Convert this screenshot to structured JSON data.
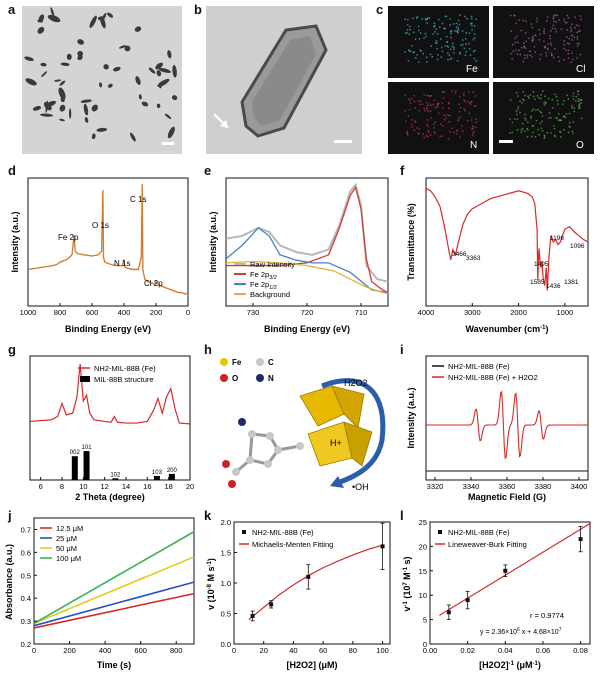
{
  "figure": {
    "panel_labels": [
      "a",
      "b",
      "c",
      "d",
      "e",
      "f",
      "g",
      "h",
      "i",
      "j",
      "k",
      "l"
    ],
    "colors": {
      "panel_d_line": "#d2782b",
      "e_raw": "#b8b8b8",
      "e_fe32": "#d43a3a",
      "e_fe12": "#4a82c8",
      "e_bg": "#e2b23a",
      "f_line": "#d62a2a",
      "g_line": "#d62a2a",
      "g_bars": "#000000",
      "i_black": "#111111",
      "i_red": "#d62a2a",
      "j_c1": "#d62a2a",
      "j_c2": "#2a4ec8",
      "j_c3": "#e6c81e",
      "j_c4": "#35b25a",
      "kl_line": "#d62a2a",
      "tem_bg": "#d9d9d9",
      "eds_bg": "#111111",
      "eds_fe": "#43b6d6",
      "eds_cl": "#b25ab8",
      "eds_n": "#c8325a",
      "eds_o": "#52b84a",
      "h_fe": "#e6c800",
      "h_c": "#c8c8c8",
      "h_o": "#cc2222",
      "h_n": "#1e2a6e",
      "h_polyhedra": "#e6b800",
      "h_arrow": "#2a5ea8"
    }
  },
  "panel_c": {
    "labels": [
      "Fe",
      "Cl",
      "N",
      "O"
    ]
  },
  "panel_d": {
    "chart_data": {
      "type": "line",
      "title": "",
      "xlabel": "Binding Energy (eV)",
      "ylabel": "Intensity (a.u.)",
      "xlim": [
        1000,
        0
      ],
      "x_ticks": [
        "1000",
        "800",
        "600",
        "400",
        "200",
        "0"
      ],
      "x": [
        1000,
        950,
        900,
        850,
        820,
        800,
        780,
        760,
        740,
        725,
        712,
        705,
        690,
        650,
        600,
        560,
        540,
        532,
        528,
        520,
        480,
        440,
        410,
        402,
        395,
        380,
        340,
        310,
        292,
        286,
        282,
        270,
        250,
        230,
        210,
        200,
        180,
        160,
        140,
        120,
        100,
        80,
        60,
        40,
        20,
        0
      ],
      "y": [
        0.3,
        0.31,
        0.32,
        0.33,
        0.34,
        0.36,
        0.37,
        0.38,
        0.4,
        0.42,
        0.58,
        0.45,
        0.43,
        0.42,
        0.41,
        0.42,
        0.45,
        0.95,
        0.4,
        0.36,
        0.34,
        0.33,
        0.33,
        0.38,
        0.32,
        0.31,
        0.3,
        0.3,
        0.4,
        1.0,
        0.3,
        0.22,
        0.2,
        0.19,
        0.18,
        0.2,
        0.17,
        0.16,
        0.15,
        0.14,
        0.13,
        0.12,
        0.11,
        0.11,
        0.1,
        0.1
      ],
      "annotations": [
        "Fe 2p",
        "O 1s",
        "N 1s",
        "C 1s",
        "Cl 2p"
      ]
    }
  },
  "panel_e": {
    "chart_data": {
      "type": "line",
      "xlabel": "Binding Energy (eV)",
      "ylabel": "Intensity (a.u.)",
      "xlim": [
        735,
        705
      ],
      "x_ticks": [
        "730",
        "720",
        "710"
      ],
      "series": [
        {
          "name": "Raw Intensity",
          "x": [
            735,
            732,
            729,
            727,
            725,
            722,
            719,
            716,
            714,
            712,
            711,
            710,
            709,
            707,
            705
          ],
          "values": [
            0.6,
            0.62,
            0.68,
            0.65,
            0.55,
            0.5,
            0.48,
            0.52,
            0.7,
            0.95,
            1.0,
            0.85,
            0.4,
            0.3,
            0.28
          ]
        },
        {
          "name": "Fe 2p3/2",
          "x": [
            735,
            730,
            725,
            720,
            716,
            714,
            712,
            711,
            710,
            709,
            708,
            706,
            705
          ],
          "values": [
            0.4,
            0.4,
            0.4,
            0.42,
            0.48,
            0.68,
            0.92,
            0.98,
            0.82,
            0.45,
            0.28,
            0.22,
            0.2
          ]
        },
        {
          "name": "Fe 2p1/2",
          "x": [
            735,
            732,
            729,
            727,
            725,
            722,
            719,
            716,
            712,
            708,
            705
          ],
          "values": [
            0.45,
            0.55,
            0.68,
            0.62,
            0.48,
            0.44,
            0.42,
            0.42,
            0.35,
            0.22,
            0.2
          ]
        },
        {
          "name": "Background",
          "x": [
            735,
            730,
            725,
            720,
            715,
            712,
            709,
            706,
            705
          ],
          "values": [
            0.42,
            0.43,
            0.42,
            0.4,
            0.36,
            0.3,
            0.24,
            0.2,
            0.19
          ]
        }
      ],
      "legend": [
        "Raw Intensity",
        "Fe 2p",
        "Fe 2p",
        "Background"
      ],
      "legend_sub": [
        "",
        "3/2",
        "1/2",
        ""
      ]
    }
  },
  "panel_f": {
    "chart_data": {
      "type": "line",
      "xlabel": "Wavenumber (cm",
      "xlabel_sup": "-1",
      "xlabel_end": ")",
      "ylabel": "Transmittance (%)",
      "xlim": [
        4000,
        500
      ],
      "x_ticks": [
        "4000",
        "3000",
        "2000",
        "1000"
      ],
      "x": [
        4000,
        3900,
        3800,
        3700,
        3600,
        3500,
        3466,
        3420,
        3363,
        3300,
        3200,
        3100,
        3000,
        2800,
        2600,
        2400,
        2200,
        2000,
        1900,
        1800,
        1700,
        1650,
        1600,
        1585,
        1560,
        1520,
        1495,
        1470,
        1436,
        1400,
        1381,
        1340,
        1300,
        1250,
        1196,
        1150,
        1096,
        1050,
        1000,
        900,
        800,
        700,
        600,
        500
      ],
      "y": [
        0.92,
        0.9,
        0.85,
        0.78,
        0.62,
        0.42,
        0.36,
        0.44,
        0.4,
        0.5,
        0.64,
        0.72,
        0.76,
        0.8,
        0.84,
        0.86,
        0.88,
        0.9,
        0.89,
        0.88,
        0.85,
        0.8,
        0.6,
        0.2,
        0.45,
        0.3,
        0.35,
        0.22,
        0.16,
        0.3,
        0.12,
        0.4,
        0.55,
        0.5,
        0.52,
        0.48,
        0.5,
        0.55,
        0.6,
        0.62,
        0.58,
        0.55,
        0.52,
        0.5
      ],
      "annotations": [
        "3466",
        "3363",
        "1585",
        "1495",
        "1436",
        "1381",
        "1196",
        "1096"
      ]
    }
  },
  "panel_g": {
    "chart_data": {
      "type": "line",
      "xlabel": "2 Theta (degree)",
      "ylabel": "",
      "xlim": [
        5,
        20
      ],
      "x_ticks": [
        "6",
        "8",
        "10",
        "12",
        "14",
        "16",
        "18",
        "20"
      ],
      "series": [
        {
          "name": "NH2-MIL-88B (Fe)",
          "x": [
            5,
            6,
            7,
            7.6,
            8.0,
            8.4,
            9,
            9.4,
            9.7,
            10.0,
            10.3,
            10.6,
            11,
            12,
            12.6,
            12.9,
            13.2,
            14,
            15,
            16,
            16.6,
            17.0,
            17.4,
            17.8,
            18.2,
            18.6,
            19,
            20
          ],
          "values": [
            0.3,
            0.31,
            0.32,
            0.36,
            0.52,
            0.38,
            0.4,
            0.6,
            1.0,
            0.55,
            0.62,
            0.4,
            0.32,
            0.3,
            0.29,
            0.36,
            0.29,
            0.28,
            0.28,
            0.3,
            0.44,
            0.58,
            0.4,
            0.6,
            0.7,
            0.45,
            0.28,
            0.27
          ]
        }
      ],
      "bars": [
        {
          "label": "002",
          "x": 9.2,
          "value": 0.7
        },
        {
          "label": "101",
          "x": 10.3,
          "value": 0.85
        },
        {
          "label": "102",
          "x": 13.0,
          "value": 0.05
        },
        {
          "label": "103",
          "x": 16.9,
          "value": 0.12
        },
        {
          "label": "200",
          "x": 18.3,
          "value": 0.18
        }
      ],
      "legend": [
        "NH2-MIL-88B (Fe)",
        "MIL-88B structure"
      ]
    }
  },
  "panel_h": {
    "legend_atoms": [
      {
        "sym": "Fe"
      },
      {
        "sym": "C"
      },
      {
        "sym": "O"
      },
      {
        "sym": "N"
      }
    ],
    "labels": {
      "h2o2": "H2O2",
      "h_plus": "H+",
      "oh": "•OH"
    }
  },
  "panel_i": {
    "chart_data": {
      "type": "line",
      "xlabel": "Magnetic Field (G)",
      "ylabel": "Intensity (a.u.)",
      "xlim": [
        3315,
        3405
      ],
      "x_ticks": [
        "3320",
        "3340",
        "3360",
        "3380",
        "3400"
      ],
      "line_peaks_G": [
        3344,
        3358,
        3366,
        3379
      ],
      "line_amplitudes": [
        0.45,
        0.95,
        0.9,
        0.4
      ],
      "series_names": [
        "NH2-MIL-88B (Fe)",
        "NH2-MIL-88B (Fe) + H2O2"
      ]
    }
  },
  "panel_j": {
    "chart_data": {
      "type": "line",
      "xlabel": "Time (s)",
      "ylabel": "Absorbance (a.u.)",
      "xlim": [
        0,
        900
      ],
      "ylim": [
        0.2,
        0.75
      ],
      "x_ticks": [
        "0",
        "200",
        "400",
        "600",
        "800"
      ],
      "y_ticks": [
        "0.2",
        "0.3",
        "0.4",
        "0.5",
        "0.6",
        "0.7"
      ],
      "series": [
        {
          "name": "12.5 μM",
          "x": [
            0,
            900
          ],
          "values": [
            0.27,
            0.42
          ]
        },
        {
          "name": "25 μM",
          "x": [
            0,
            900
          ],
          "values": [
            0.28,
            0.47
          ]
        },
        {
          "name": "50 μM",
          "x": [
            0,
            900
          ],
          "values": [
            0.29,
            0.58
          ]
        },
        {
          "name": "100 μM",
          "x": [
            0,
            900
          ],
          "values": [
            0.29,
            0.69
          ]
        }
      ]
    }
  },
  "panel_k": {
    "chart_data": {
      "type": "scatter",
      "xlabel": "[H2O2] (μM)",
      "ylabel": "v (10",
      "xlim": [
        0,
        105
      ],
      "ylim": [
        0,
        2.0
      ],
      "x_ticks": [
        "0",
        "20",
        "40",
        "60",
        "80",
        "100"
      ],
      "y_ticks": [
        "0.0",
        "0.5",
        "1.0",
        "1.5",
        "2.0"
      ],
      "x": [
        12.5,
        25,
        50,
        100
      ],
      "values": [
        0.46,
        0.65,
        1.1,
        1.6
      ],
      "errors": [
        0.08,
        0.06,
        0.2,
        0.38
      ],
      "fit": {
        "x": [
          10,
          20,
          30,
          40,
          50,
          60,
          70,
          80,
          90,
          100
        ],
        "values": [
          0.4,
          0.6,
          0.8,
          0.97,
          1.12,
          1.25,
          1.36,
          1.46,
          1.55,
          1.62
        ]
      },
      "legend": [
        "NH2-MIL-88B (Fe)",
        "Michaelis-Menten Fitting"
      ]
    }
  },
  "panel_l": {
    "chart_data": {
      "type": "scatter",
      "xlabel": "[H2O2]",
      "ylabel": "v",
      "xlim": [
        0,
        0.085
      ],
      "ylim": [
        0,
        25
      ],
      "x_ticks": [
        "0.00",
        "0.02",
        "0.04",
        "0.06",
        "0.08"
      ],
      "y_ticks": [
        "0",
        "5",
        "10",
        "15",
        "20",
        "25"
      ],
      "x": [
        0.01,
        0.02,
        0.04,
        0.08
      ],
      "values": [
        6.5,
        9.0,
        15.0,
        21.5
      ],
      "errors": [
        1.5,
        1.8,
        1.2,
        2.6
      ],
      "fit": {
        "x": [
          0.005,
          0.085
        ],
        "values": [
          5.86,
          24.7
        ]
      },
      "legend": [
        "NH2-MIL-88B (Fe)",
        "Lineweaver-Burk Fitting"
      ],
      "r_text": "r = 0.9774",
      "eq_text": "y = 2.36×10",
      "eq_exp1": "6",
      "eq_mid": " x + 4.68×10",
      "eq_exp2": "7"
    }
  }
}
